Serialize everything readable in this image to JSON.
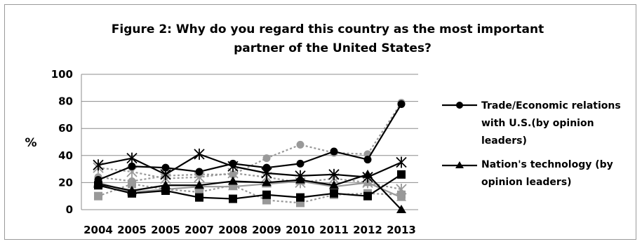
{
  "chart_data": {
    "type": "line",
    "title_line1": "Figure 2:   Why do you regard this country as the most important",
    "title_line2": "partner of the United States?",
    "ylabel": "%",
    "ylim": [
      0,
      100
    ],
    "yticks": [
      0,
      20,
      40,
      60,
      80,
      100
    ],
    "categories": [
      "2004",
      "2005",
      "2005",
      "2007",
      "2008",
      "2009",
      "2010",
      "2011",
      "2012",
      "2013"
    ],
    "series": [
      {
        "name": "Trade/Economic relations with U.S.(by opinion leaders)",
        "marker": "circle",
        "color": "#000000",
        "dash": "",
        "values": [
          22,
          32,
          31,
          28,
          34,
          31,
          34,
          43,
          37,
          78
        ]
      },
      {
        "name": "Nation's technology (by opinion leaders)",
        "marker": "triangle",
        "color": "#000000",
        "dash": "",
        "values": [
          19,
          14,
          18,
          18,
          21,
          20,
          22,
          18,
          26,
          0
        ]
      },
      {
        "marker": "star",
        "color": "#000000",
        "dash": "",
        "values": [
          33,
          38,
          26,
          41,
          32,
          27,
          25,
          26,
          24,
          35
        ]
      },
      {
        "marker": "square",
        "color": "#000000",
        "dash": "",
        "values": [
          18,
          12,
          14,
          9,
          8,
          11,
          9,
          12,
          10,
          26
        ]
      },
      {
        "marker": "circle",
        "color": "#999999",
        "dash": "3,3",
        "values": [
          24,
          21,
          25,
          26,
          26,
          38,
          48,
          42,
          41,
          79
        ]
      },
      {
        "marker": "triangle",
        "color": "#999999",
        "dash": "",
        "values": [
          20,
          13,
          15,
          17,
          17,
          19,
          21,
          17,
          20,
          9
        ]
      },
      {
        "marker": "star",
        "color": "#999999",
        "dash": "3,3",
        "values": [
          31,
          28,
          23,
          24,
          27,
          24,
          20,
          23,
          20,
          15
        ]
      },
      {
        "marker": "square",
        "color": "#999999",
        "dash": "3,3",
        "values": [
          10,
          19,
          15,
          13,
          18,
          7,
          5,
          11,
          12,
          11
        ]
      }
    ],
    "legend_position": "right"
  }
}
